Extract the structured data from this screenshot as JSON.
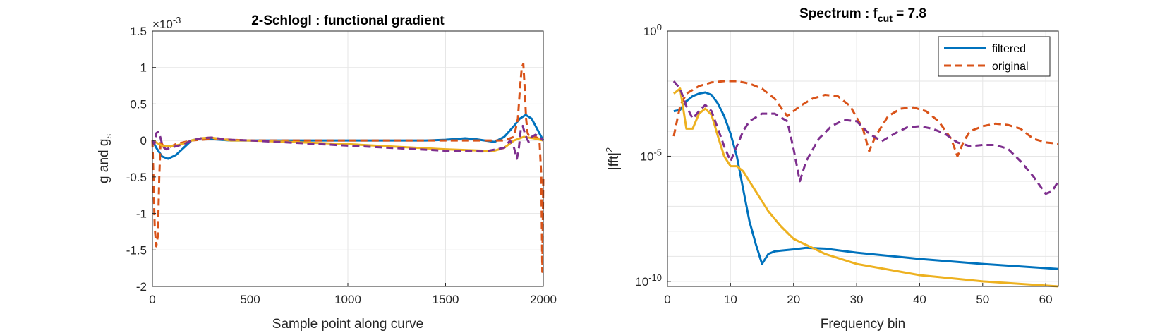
{
  "chart_data": [
    {
      "type": "line",
      "title": "2-Schlogl : functional gradient",
      "xlabel": "Sample point along curve",
      "ylabel_main": "g and g",
      "ylabel_sub": "s",
      "exponent_prefix": "×10",
      "exponent": "-3",
      "xlim": [
        0,
        2000
      ],
      "ylim": [
        -2,
        1.5
      ],
      "xticks": [
        "0",
        "500",
        "1000",
        "1500",
        "2000"
      ],
      "yticks": [
        "1.5",
        "1",
        "0.5",
        "0",
        "-0.5",
        "-1",
        "-1.5",
        "-2"
      ],
      "grid": true,
      "series": [
        {
          "color": "#0072BD",
          "dash": "solid",
          "x": [
            0,
            20,
            50,
            80,
            120,
            160,
            200,
            250,
            300,
            400,
            600,
            800,
            1000,
            1200,
            1400,
            1500,
            1550,
            1600,
            1650,
            1700,
            1750,
            1800,
            1850,
            1880,
            1910,
            1940,
            1970,
            2000
          ],
          "y": [
            0,
            -0.1,
            -0.22,
            -0.25,
            -0.2,
            -0.1,
            0,
            0.03,
            0.02,
            0,
            0,
            0,
            0,
            0,
            0,
            0.01,
            0.02,
            0.03,
            0.02,
            0,
            -0.02,
            0.05,
            0.2,
            0.3,
            0.35,
            0.3,
            0.15,
            0
          ]
        },
        {
          "color": "#D95319",
          "dash": "dashed",
          "x": [
            0,
            5,
            12,
            20,
            28,
            35,
            42,
            50,
            60,
            80,
            120,
            200,
            300,
            500,
            1000,
            1500,
            1800,
            1850,
            1870,
            1880,
            1890,
            1898,
            1905,
            1912,
            1920,
            1930,
            1945,
            1960,
            1980,
            1990,
            1995,
            2000
          ],
          "y": [
            0,
            -0.5,
            -1.2,
            -1.45,
            -1.3,
            -0.5,
            0,
            -0.05,
            -0.1,
            -0.1,
            -0.05,
            0,
            0.02,
            0,
            0,
            0,
            0,
            0.05,
            0.3,
            0.7,
            1.0,
            1.05,
            0.7,
            0.3,
            0.1,
            0.05,
            0.05,
            0.05,
            0.02,
            -0.5,
            -1.8,
            -0.5
          ]
        },
        {
          "color": "#EDB120",
          "dash": "solid",
          "x": [
            0,
            50,
            100,
            150,
            200,
            250,
            300,
            350,
            400,
            500,
            1000,
            1500,
            1700,
            1750,
            1800,
            1850,
            1900,
            1950,
            2000
          ],
          "y": [
            0,
            -0.07,
            -0.08,
            -0.05,
            0,
            0.03,
            0.04,
            0.02,
            0,
            0,
            -0.05,
            -0.12,
            -0.14,
            -0.14,
            -0.1,
            0,
            0.05,
            0.03,
            0
          ]
        },
        {
          "color": "#7E2F8E",
          "dash": "dashed",
          "x": [
            0,
            10,
            20,
            30,
            40,
            50,
            60,
            70,
            90,
            120,
            160,
            200,
            250,
            300,
            400,
            500,
            1000,
            1500,
            1700,
            1800,
            1830,
            1850,
            1865,
            1875,
            1885,
            1895,
            1905,
            1915,
            1925,
            1940,
            1960,
            1980,
            2000
          ],
          "y": [
            0,
            -0.05,
            0.1,
            0.12,
            0.05,
            -0.05,
            -0.1,
            -0.12,
            -0.1,
            -0.08,
            -0.05,
            0,
            0.03,
            0.04,
            0.01,
            0,
            -0.07,
            -0.14,
            -0.15,
            -0.1,
            0,
            -0.1,
            -0.25,
            -0.1,
            0.15,
            0.2,
            0.1,
            0.03,
            -0.02,
            0.05,
            0.08,
            0.05,
            0
          ]
        }
      ]
    },
    {
      "type": "line",
      "title_main": "Spectrum : f",
      "title_sub": "cut",
      "title_tail": " = 7.8",
      "xlabel": "Frequency bin",
      "ylabel_main": "|fft|",
      "ylabel_sup": "2",
      "yscale": "log",
      "xlim": [
        0,
        62
      ],
      "ylim_exponent": [
        -10.2,
        0
      ],
      "xticks": [
        "0",
        "10",
        "20",
        "30",
        "40",
        "50",
        "60"
      ],
      "ytick_labels": [
        {
          "base": "10",
          "exp": "0"
        },
        {
          "base": "10",
          "exp": "-5"
        },
        {
          "base": "10",
          "exp": "-10"
        }
      ],
      "grid": true,
      "legend_position": "top-right",
      "legend": [
        {
          "label": "filtered",
          "color": "#0072BD",
          "dash": "solid"
        },
        {
          "label": "original",
          "color": "#D95319",
          "dash": "dashed"
        }
      ],
      "series": [
        {
          "name": "filtered",
          "color": "#0072BD",
          "dash": "solid",
          "x": [
            1,
            2,
            3,
            4,
            5,
            6,
            7,
            8,
            9,
            10,
            11,
            12,
            13,
            14,
            15,
            16,
            17,
            18,
            20,
            22,
            25,
            30,
            40,
            50,
            62
          ],
          "y_log10": [
            -3.2,
            -3.15,
            -2.8,
            -2.6,
            -2.5,
            -2.45,
            -2.55,
            -2.9,
            -3.4,
            -4.1,
            -5.0,
            -6.3,
            -7.6,
            -8.5,
            -9.3,
            -8.9,
            -8.8,
            -8.77,
            -8.72,
            -8.66,
            -8.69,
            -8.85,
            -9.1,
            -9.3,
            -9.5
          ]
        },
        {
          "name": "original",
          "color": "#D95319",
          "dash": "dashed",
          "x": [
            1,
            2,
            3,
            5,
            7,
            9,
            11,
            13,
            15,
            17,
            19,
            21,
            23,
            25,
            27,
            29,
            31,
            32,
            33,
            35,
            37,
            39,
            41,
            43,
            45,
            46,
            47,
            48,
            50,
            52,
            54,
            56,
            58,
            60,
            62
          ],
          "y_log10": [
            -4.2,
            -3.0,
            -2.5,
            -2.2,
            -2.05,
            -2.0,
            -2.0,
            -2.1,
            -2.3,
            -2.7,
            -3.4,
            -3.0,
            -2.7,
            -2.55,
            -2.6,
            -3.0,
            -3.9,
            -4.8,
            -4.2,
            -3.4,
            -3.1,
            -3.05,
            -3.2,
            -3.6,
            -4.3,
            -5.0,
            -4.4,
            -4.0,
            -3.8,
            -3.7,
            -3.75,
            -3.9,
            -4.3,
            -4.45,
            -4.5
          ]
        },
        {
          "color": "#EDB120",
          "dash": "solid",
          "x": [
            1,
            2,
            3,
            4,
            5,
            6,
            7,
            8,
            9,
            10,
            11,
            12,
            14,
            16,
            18,
            20,
            25,
            30,
            40,
            50,
            62
          ],
          "y_log10": [
            -2.5,
            -2.3,
            -3.9,
            -3.9,
            -3.3,
            -3.1,
            -3.35,
            -4.2,
            -5.0,
            -5.4,
            -5.4,
            -5.6,
            -6.4,
            -7.2,
            -7.8,
            -8.3,
            -8.9,
            -9.3,
            -9.75,
            -10.0,
            -10.2
          ]
        },
        {
          "color": "#7E2F8E",
          "dash": "dashed",
          "x": [
            1,
            2,
            3,
            4,
            5,
            6,
            7,
            8,
            9,
            10,
            11,
            12,
            13,
            15,
            17,
            19,
            20,
            21,
            22,
            24,
            26,
            28,
            30,
            32,
            34,
            36,
            38,
            40,
            42,
            44,
            46,
            48,
            50,
            52,
            54,
            56,
            58,
            60,
            61,
            62
          ],
          "y_log10": [
            -2.0,
            -2.3,
            -3.0,
            -3.5,
            -3.2,
            -2.95,
            -3.2,
            -3.9,
            -4.6,
            -5.2,
            -4.6,
            -4.0,
            -3.6,
            -3.3,
            -3.3,
            -3.6,
            -4.7,
            -6.0,
            -5.2,
            -4.3,
            -3.8,
            -3.55,
            -3.6,
            -4.1,
            -4.4,
            -4.1,
            -3.85,
            -3.8,
            -3.9,
            -4.1,
            -4.45,
            -4.6,
            -4.55,
            -4.55,
            -4.7,
            -5.2,
            -5.8,
            -6.5,
            -6.4,
            -6.0
          ]
        }
      ]
    }
  ]
}
